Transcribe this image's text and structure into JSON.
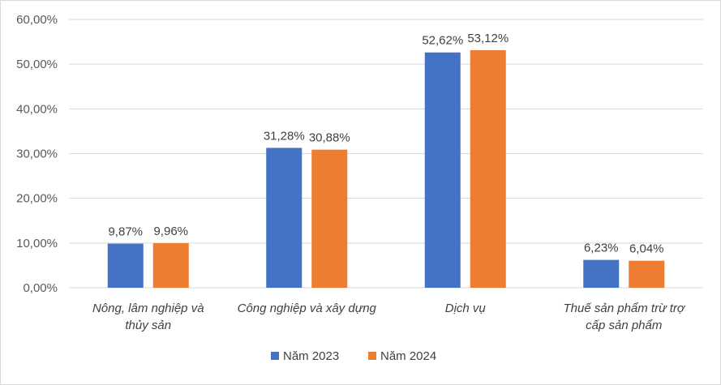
{
  "chart_data": {
    "type": "bar",
    "categories": [
      [
        "Nông, lâm nghiệp và",
        "thủy sản"
      ],
      [
        "Công nghiệp và xây dựng"
      ],
      [
        "Dịch vụ"
      ],
      [
        "Thuế sản phẩm trừ trợ",
        "cấp sản phẩm"
      ]
    ],
    "series": [
      {
        "name": "Năm 2023",
        "color": "#4472C4",
        "values": [
          9.87,
          31.28,
          52.62,
          6.23
        ],
        "labels": [
          "9,87%",
          "31,28%",
          "52,62%",
          "6,23%"
        ]
      },
      {
        "name": "Năm 2024",
        "color": "#ED7D31",
        "values": [
          9.96,
          30.88,
          53.12,
          6.04
        ],
        "labels": [
          "9,96%",
          "30,88%",
          "53,12%",
          "6,04%"
        ]
      }
    ],
    "yticks": [
      "0,00%",
      "10,00%",
      "20,00%",
      "30,00%",
      "40,00%",
      "50,00%",
      "60,00%"
    ],
    "ylim": [
      0,
      60
    ],
    "grid": true,
    "legend": "bottom"
  }
}
